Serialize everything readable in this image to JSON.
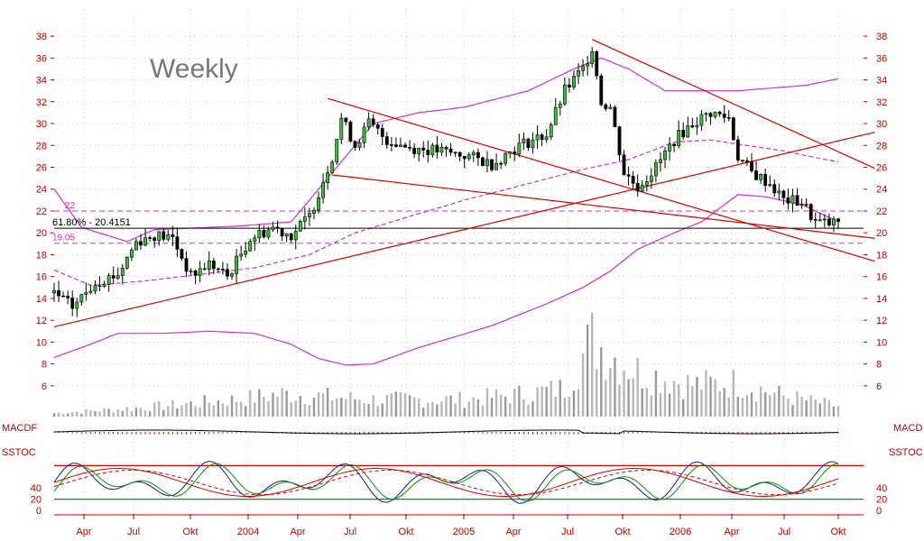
{
  "chart_data": {
    "type": "candlestick",
    "title": "Weekly",
    "timeframe": "weekly",
    "y_ticks": [
      6,
      8,
      10,
      12,
      14,
      16,
      18,
      20,
      22,
      24,
      26,
      28,
      30,
      32,
      34,
      36,
      38
    ],
    "y_range": [
      5,
      38.5
    ],
    "x_labels": [
      "Apr",
      "Jul",
      "Okt",
      "2004",
      "Apr",
      "Jul",
      "Okt",
      "2005",
      "Apr",
      "Jul",
      "Okt",
      "2006",
      "Apr",
      "Jul",
      "Okt"
    ],
    "x_range_weeks": 172,
    "grid": true,
    "price_anchors": [
      [
        0,
        14.5
      ],
      [
        4,
        13.2
      ],
      [
        9,
        15.5
      ],
      [
        14,
        16.2
      ],
      [
        18,
        19.2
      ],
      [
        22,
        19.8
      ],
      [
        26,
        19.5
      ],
      [
        30,
        16.0
      ],
      [
        34,
        17.2
      ],
      [
        38,
        16.0
      ],
      [
        43,
        19.5
      ],
      [
        48,
        20.5
      ],
      [
        52,
        19.8
      ],
      [
        56,
        21.5
      ],
      [
        61,
        27.0
      ],
      [
        63,
        30.5
      ],
      [
        66,
        28.0
      ],
      [
        69,
        30.0
      ],
      [
        73,
        28.5
      ],
      [
        78,
        27.8
      ],
      [
        84,
        27.5
      ],
      [
        91,
        27.0
      ],
      [
        96,
        26.3
      ],
      [
        102,
        28.0
      ],
      [
        108,
        29.0
      ],
      [
        112,
        33.0
      ],
      [
        116,
        35.0
      ],
      [
        118,
        37.0
      ],
      [
        120,
        32.0
      ],
      [
        122,
        31.5
      ],
      [
        125,
        25.5
      ],
      [
        128,
        24.2
      ],
      [
        132,
        26.0
      ],
      [
        136,
        28.5
      ],
      [
        140,
        30.0
      ],
      [
        144,
        31.0
      ],
      [
        148,
        30.5
      ],
      [
        150,
        27.0
      ],
      [
        153,
        25.5
      ],
      [
        157,
        24.5
      ],
      [
        160,
        23.0
      ],
      [
        164,
        22.8
      ],
      [
        167,
        21.0
      ],
      [
        170,
        20.8
      ],
      [
        172,
        21.0
      ]
    ],
    "horizontal_lines": [
      {
        "label": "61.80% - 20.4151",
        "value": 20.4151,
        "style": "solid",
        "color": "#000000"
      },
      {
        "label": "22",
        "value": 22,
        "style": "dashed",
        "color": "#cc33cc"
      },
      {
        "label": "19.05",
        "value": 19.05,
        "style": "dashed",
        "color": "#cc33cc"
      }
    ],
    "trendlines": [
      {
        "name": "uptrend",
        "from": [
          0,
          11.4
        ],
        "to": [
          180,
          29.2
        ]
      },
      {
        "name": "triangle-upper",
        "from": [
          60,
          32.3
        ],
        "to": [
          180,
          17.4
        ]
      },
      {
        "name": "triangle-lower",
        "from": [
          61,
          25.3
        ],
        "to": [
          180,
          19.5
        ]
      },
      {
        "name": "downtrend",
        "from": [
          118,
          37.7
        ],
        "to": [
          180,
          25.9
        ]
      }
    ],
    "bollinger_upper_anchors": [
      [
        0,
        24.0
      ],
      [
        6,
        20.5
      ],
      [
        16,
        19.2
      ],
      [
        22,
        20.3
      ],
      [
        40,
        20.6
      ],
      [
        52,
        21.0
      ],
      [
        60,
        25.0
      ],
      [
        70,
        30.0
      ],
      [
        80,
        31.0
      ],
      [
        90,
        31.5
      ],
      [
        104,
        33.0
      ],
      [
        114,
        35.0
      ],
      [
        120,
        36.0
      ],
      [
        126,
        35.0
      ],
      [
        134,
        33.0
      ],
      [
        150,
        33.0
      ],
      [
        165,
        33.5
      ],
      [
        172,
        34.1
      ]
    ],
    "bollinger_lower_anchors": [
      [
        0,
        8.6
      ],
      [
        8,
        9.8
      ],
      [
        14,
        10.8
      ],
      [
        24,
        10.8
      ],
      [
        34,
        11.0
      ],
      [
        44,
        10.8
      ],
      [
        52,
        9.8
      ],
      [
        58,
        8.5
      ],
      [
        64,
        7.9
      ],
      [
        70,
        8.0
      ],
      [
        80,
        9.5
      ],
      [
        96,
        11.5
      ],
      [
        108,
        13.5
      ],
      [
        116,
        15.0
      ],
      [
        122,
        16.5
      ],
      [
        128,
        18.5
      ],
      [
        136,
        20.0
      ],
      [
        142,
        21.0
      ],
      [
        150,
        23.5
      ],
      [
        156,
        23.3
      ],
      [
        164,
        22.6
      ],
      [
        172,
        21.0
      ]
    ],
    "moving_average_anchors": [
      [
        0,
        16.6
      ],
      [
        8,
        15.2
      ],
      [
        20,
        15.6
      ],
      [
        32,
        16.2
      ],
      [
        44,
        16.8
      ],
      [
        56,
        18.0
      ],
      [
        66,
        20.0
      ],
      [
        78,
        21.5
      ],
      [
        90,
        23.0
      ],
      [
        104,
        24.5
      ],
      [
        116,
        25.8
      ],
      [
        126,
        26.7
      ],
      [
        136,
        28.3
      ],
      [
        144,
        28.5
      ],
      [
        152,
        28.0
      ],
      [
        160,
        27.5
      ],
      [
        168,
        26.8
      ],
      [
        172,
        26.5
      ]
    ],
    "volume_anchors": [
      [
        0,
        0.3
      ],
      [
        20,
        0.8
      ],
      [
        40,
        1.5
      ],
      [
        50,
        2.0
      ],
      [
        70,
        1.5
      ],
      [
        90,
        1.5
      ],
      [
        104,
        2.0
      ],
      [
        112,
        2.5
      ],
      [
        118,
        6.8
      ],
      [
        122,
        5.5
      ],
      [
        128,
        4.0
      ],
      [
        140,
        2.8
      ],
      [
        150,
        3.0
      ],
      [
        160,
        1.8
      ],
      [
        172,
        0.9
      ]
    ],
    "indicators": [
      {
        "name": "MACDF",
        "label_left": "MACDF",
        "label_right": "MACD"
      },
      {
        "name": "SSTOC",
        "label_left": "SSTOC",
        "label_right": "SSTOC",
        "levels": [
          0,
          20,
          40
        ],
        "overbought": 80,
        "oversold": 20
      }
    ]
  }
}
